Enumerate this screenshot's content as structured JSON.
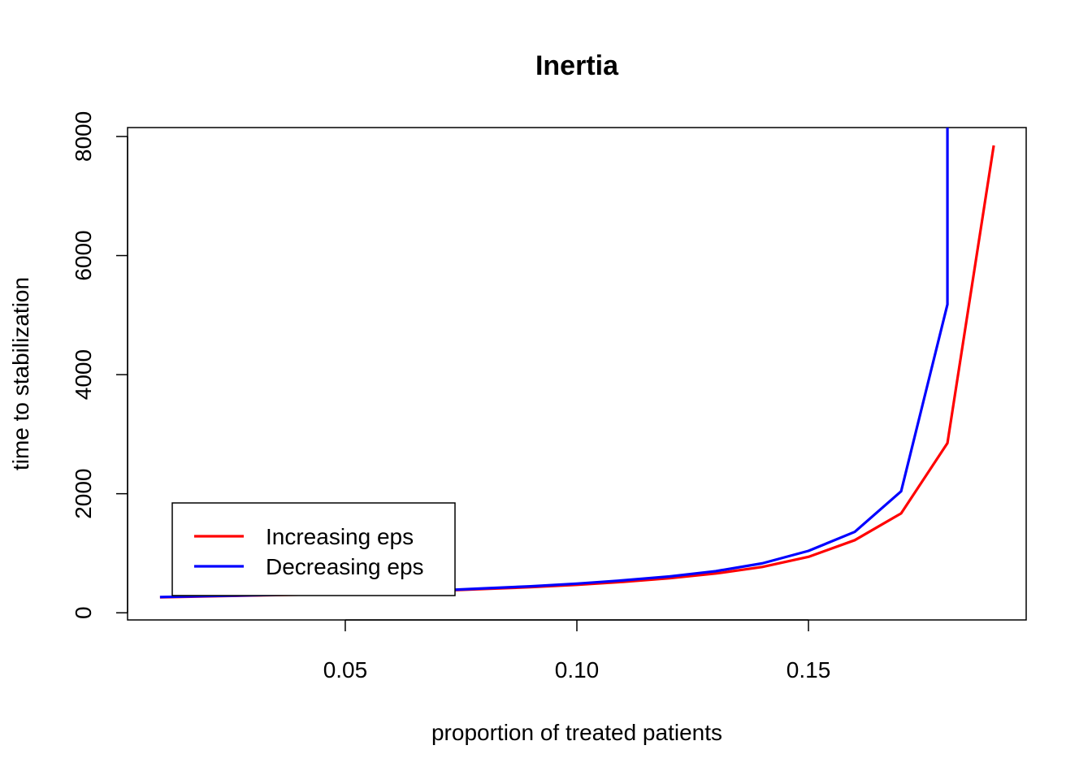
{
  "chart_data": {
    "type": "line",
    "title": "Inertia",
    "xlabel": "proportion of treated patients",
    "ylabel": "time to stabilization",
    "xlim": [
      0.003,
      0.197
    ],
    "ylim": [
      -120,
      8150
    ],
    "x_ticks": [
      0.05,
      0.1,
      0.15
    ],
    "x_tick_labels": [
      "0.05",
      "0.10",
      "0.15"
    ],
    "y_ticks": [
      0,
      2000,
      4000,
      6000,
      8000
    ],
    "y_tick_labels": [
      "0",
      "2000",
      "4000",
      "6000",
      "8000"
    ],
    "grid": false,
    "legend_position": "bottom-left",
    "series": [
      {
        "name": "Increasing eps",
        "color": "#ff0000",
        "x": [
          0.01,
          0.02,
          0.03,
          0.04,
          0.05,
          0.06,
          0.07,
          0.08,
          0.09,
          0.1,
          0.11,
          0.12,
          0.13,
          0.14,
          0.15,
          0.16,
          0.17,
          0.18,
          0.19
        ],
        "y": [
          260,
          275,
          290,
          305,
          325,
          345,
          370,
          400,
          430,
          470,
          520,
          580,
          660,
          770,
          940,
          1220,
          1670,
          2850,
          7850
        ]
      },
      {
        "name": "Decreasing eps",
        "color": "#0000ff",
        "x": [
          0.01,
          0.02,
          0.03,
          0.04,
          0.05,
          0.06,
          0.07,
          0.08,
          0.09,
          0.1,
          0.11,
          0.12,
          0.13,
          0.14,
          0.15,
          0.16,
          0.17,
          0.18,
          0.18
        ],
        "y": [
          265,
          280,
          295,
          310,
          330,
          350,
          375,
          410,
          445,
          490,
          545,
          610,
          700,
          830,
          1040,
          1360,
          2040,
          5180,
          8150
        ]
      }
    ]
  }
}
